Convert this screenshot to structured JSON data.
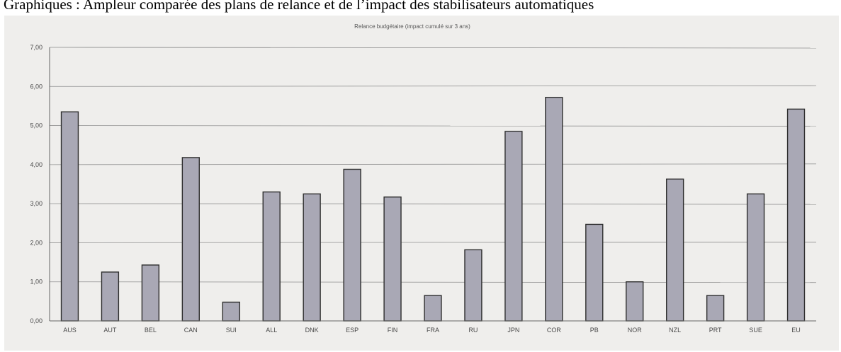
{
  "document": {
    "heading": "Graphiques : Ampleur comparée des plans de relance et de l’impact des stabilisateurs automatiques"
  },
  "chart_data": {
    "type": "bar",
    "title": "Relance budgétaire (impact cumulé sur 3 ans)",
    "xlabel": "",
    "ylabel": "",
    "ylim": [
      0,
      7
    ],
    "yticks": [
      0,
      1,
      2,
      3,
      4,
      5,
      6,
      7
    ],
    "ytick_labels": [
      "0,00",
      "1,00",
      "2,00",
      "3,00",
      "4,00",
      "5,00",
      "6,00",
      "7,00"
    ],
    "grid": true,
    "legend": "none",
    "bar_color": "#a9a8b5",
    "bar_edge_color": "#2e2e2e",
    "categories": [
      "AUS",
      "AUT",
      "BEL",
      "CAN",
      "SUI",
      "ALL",
      "DNK",
      "ESP",
      "FIN",
      "FRA",
      "RU",
      "JPN",
      "COR",
      "PB",
      "NOR",
      "NZL",
      "PRT",
      "SUE",
      "EU"
    ],
    "values": [
      5.35,
      1.25,
      1.43,
      4.18,
      0.48,
      3.3,
      3.25,
      3.88,
      3.17,
      0.65,
      1.82,
      4.85,
      5.72,
      2.47,
      1.0,
      3.63,
      0.65,
      3.25,
      5.42
    ]
  }
}
